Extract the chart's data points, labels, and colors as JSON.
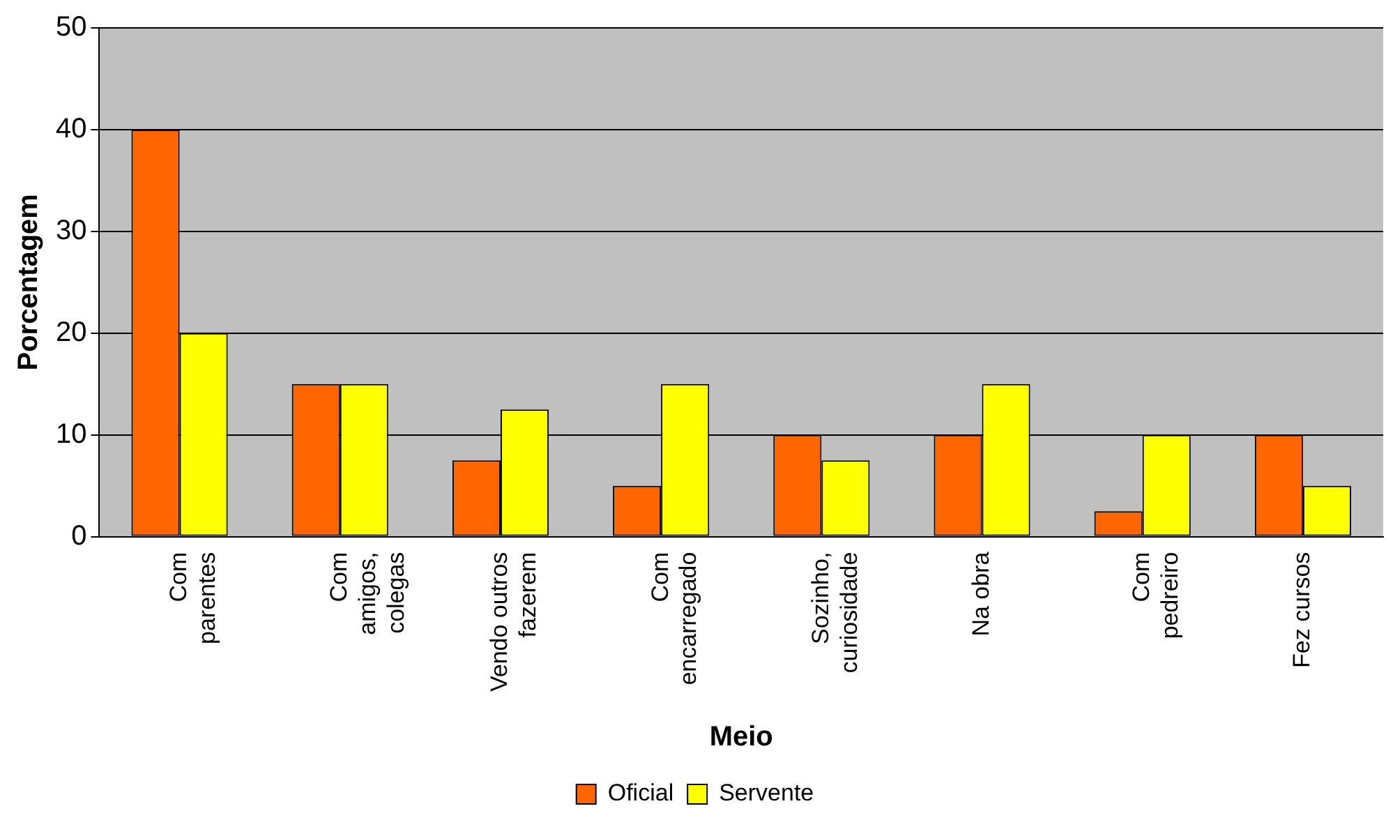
{
  "chart_data": {
    "type": "bar",
    "xlabel": "Meio",
    "ylabel": "Porcentagem",
    "categories": [
      "Com\nparentes",
      "Com\namigos,\ncolegas",
      "Vendo outros\nfazerem",
      "Com\nencarregado",
      "Sozinho,\ncuriosidade",
      "Na obra",
      "Com\npedreiro",
      "Fez cursos"
    ],
    "series": [
      {
        "name": "Oficial",
        "color": "#ff6600",
        "values": [
          40,
          15,
          7.5,
          5,
          10,
          10,
          2.5,
          10
        ]
      },
      {
        "name": "Servente",
        "color": "#ffff00",
        "values": [
          20,
          15,
          12.5,
          15,
          7.5,
          15,
          10,
          5
        ]
      }
    ],
    "ylim": [
      0,
      50
    ],
    "yticks": [
      0,
      10,
      20,
      30,
      40,
      50
    ],
    "grid": "y",
    "legend": "bottom"
  }
}
